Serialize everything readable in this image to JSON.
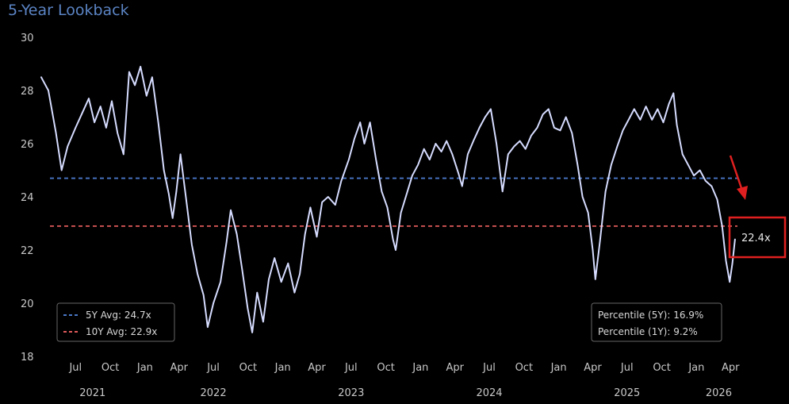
{
  "chart_data": {
    "type": "line",
    "title": "5-Year Lookback",
    "ylim": [
      18,
      30
    ],
    "yticks": [
      18,
      20,
      22,
      24,
      26,
      28,
      30
    ],
    "xlim": [
      "2021-04-01",
      "2026-04-30"
    ],
    "month_ticks": [
      {
        "date": "2021-07-01",
        "label": "Jul"
      },
      {
        "date": "2021-10-01",
        "label": "Oct"
      },
      {
        "date": "2022-01-01",
        "label": "Jan"
      },
      {
        "date": "2022-04-01",
        "label": "Apr"
      },
      {
        "date": "2022-07-01",
        "label": "Jul"
      },
      {
        "date": "2022-10-01",
        "label": "Oct"
      },
      {
        "date": "2023-01-01",
        "label": "Jan"
      },
      {
        "date": "2023-04-01",
        "label": "Apr"
      },
      {
        "date": "2023-07-01",
        "label": "Jul"
      },
      {
        "date": "2023-10-01",
        "label": "Oct"
      },
      {
        "date": "2024-01-01",
        "label": "Jan"
      },
      {
        "date": "2024-04-01",
        "label": "Apr"
      },
      {
        "date": "2024-07-01",
        "label": "Jul"
      },
      {
        "date": "2024-10-01",
        "label": "Oct"
      },
      {
        "date": "2025-01-01",
        "label": "Jan"
      },
      {
        "date": "2025-04-01",
        "label": "Apr"
      },
      {
        "date": "2025-07-01",
        "label": "Jul"
      },
      {
        "date": "2025-10-01",
        "label": "Oct"
      },
      {
        "date": "2026-01-01",
        "label": "Jan"
      },
      {
        "date": "2026-04-01",
        "label": "Apr"
      }
    ],
    "year_labels": [
      {
        "date": "2021-08-15",
        "label": "2021"
      },
      {
        "date": "2022-07-01",
        "label": "2022"
      },
      {
        "date": "2023-07-01",
        "label": "2023"
      },
      {
        "date": "2024-07-01",
        "label": "2024"
      },
      {
        "date": "2025-07-01",
        "label": "2025"
      },
      {
        "date": "2026-03-01",
        "label": "2026"
      }
    ],
    "series": [
      {
        "color": "#d6dcff",
        "points": [
          [
            "2021-04-01",
            28.5
          ],
          [
            "2021-04-20",
            28.0
          ],
          [
            "2021-05-10",
            26.4
          ],
          [
            "2021-05-25",
            25.0
          ],
          [
            "2021-06-10",
            25.9
          ],
          [
            "2021-07-01",
            26.6
          ],
          [
            "2021-07-20",
            27.2
          ],
          [
            "2021-08-05",
            27.7
          ],
          [
            "2021-08-20",
            26.8
          ],
          [
            "2021-09-05",
            27.4
          ],
          [
            "2021-09-20",
            26.6
          ],
          [
            "2021-10-05",
            27.6
          ],
          [
            "2021-10-20",
            26.4
          ],
          [
            "2021-11-05",
            25.6
          ],
          [
            "2021-11-20",
            28.7
          ],
          [
            "2021-12-05",
            28.2
          ],
          [
            "2021-12-20",
            28.9
          ],
          [
            "2022-01-05",
            27.8
          ],
          [
            "2022-01-20",
            28.5
          ],
          [
            "2022-02-05",
            26.8
          ],
          [
            "2022-02-20",
            25.0
          ],
          [
            "2022-03-05",
            24.1
          ],
          [
            "2022-03-15",
            23.2
          ],
          [
            "2022-03-25",
            24.2
          ],
          [
            "2022-04-05",
            25.6
          ],
          [
            "2022-04-20",
            23.9
          ],
          [
            "2022-05-05",
            22.2
          ],
          [
            "2022-05-20",
            21.1
          ],
          [
            "2022-06-05",
            20.3
          ],
          [
            "2022-06-16",
            19.1
          ],
          [
            "2022-07-01",
            20.0
          ],
          [
            "2022-07-20",
            20.8
          ],
          [
            "2022-08-05",
            22.3
          ],
          [
            "2022-08-16",
            23.5
          ],
          [
            "2022-09-01",
            22.6
          ],
          [
            "2022-09-15",
            21.3
          ],
          [
            "2022-09-30",
            19.8
          ],
          [
            "2022-10-12",
            18.9
          ],
          [
            "2022-10-25",
            20.4
          ],
          [
            "2022-11-10",
            19.3
          ],
          [
            "2022-11-25",
            20.9
          ],
          [
            "2022-12-10",
            21.7
          ],
          [
            "2022-12-28",
            20.8
          ],
          [
            "2023-01-15",
            21.5
          ],
          [
            "2023-02-01",
            20.4
          ],
          [
            "2023-02-15",
            21.1
          ],
          [
            "2023-03-01",
            22.6
          ],
          [
            "2023-03-15",
            23.6
          ],
          [
            "2023-04-01",
            22.5
          ],
          [
            "2023-04-15",
            23.8
          ],
          [
            "2023-05-01",
            24.0
          ],
          [
            "2023-05-20",
            23.7
          ],
          [
            "2023-06-05",
            24.6
          ],
          [
            "2023-06-25",
            25.4
          ],
          [
            "2023-07-10",
            26.2
          ],
          [
            "2023-07-25",
            26.8
          ],
          [
            "2023-08-05",
            26.0
          ],
          [
            "2023-08-20",
            26.8
          ],
          [
            "2023-09-05",
            25.4
          ],
          [
            "2023-09-20",
            24.2
          ],
          [
            "2023-10-05",
            23.6
          ],
          [
            "2023-10-20",
            22.4
          ],
          [
            "2023-10-27",
            22.0
          ],
          [
            "2023-11-10",
            23.4
          ],
          [
            "2023-11-25",
            24.1
          ],
          [
            "2023-12-10",
            24.8
          ],
          [
            "2023-12-25",
            25.2
          ],
          [
            "2024-01-10",
            25.8
          ],
          [
            "2024-01-25",
            25.4
          ],
          [
            "2024-02-10",
            26.0
          ],
          [
            "2024-02-25",
            25.7
          ],
          [
            "2024-03-10",
            26.1
          ],
          [
            "2024-03-25",
            25.6
          ],
          [
            "2024-04-10",
            24.9
          ],
          [
            "2024-04-20",
            24.4
          ],
          [
            "2024-05-05",
            25.6
          ],
          [
            "2024-05-20",
            26.1
          ],
          [
            "2024-06-05",
            26.6
          ],
          [
            "2024-06-20",
            27.0
          ],
          [
            "2024-07-05",
            27.3
          ],
          [
            "2024-07-20",
            26.0
          ],
          [
            "2024-08-05",
            24.2
          ],
          [
            "2024-08-20",
            25.6
          ],
          [
            "2024-09-05",
            25.9
          ],
          [
            "2024-09-20",
            26.1
          ],
          [
            "2024-10-05",
            25.8
          ],
          [
            "2024-10-20",
            26.3
          ],
          [
            "2024-11-05",
            26.6
          ],
          [
            "2024-11-20",
            27.1
          ],
          [
            "2024-12-05",
            27.3
          ],
          [
            "2024-12-20",
            26.6
          ],
          [
            "2025-01-05",
            26.5
          ],
          [
            "2025-01-20",
            27.0
          ],
          [
            "2025-02-05",
            26.4
          ],
          [
            "2025-02-20",
            25.2
          ],
          [
            "2025-03-05",
            24.0
          ],
          [
            "2025-03-20",
            23.4
          ],
          [
            "2025-04-01",
            22.0
          ],
          [
            "2025-04-08",
            20.9
          ],
          [
            "2025-04-20",
            22.3
          ],
          [
            "2025-05-05",
            24.2
          ],
          [
            "2025-05-20",
            25.2
          ],
          [
            "2025-06-05",
            25.9
          ],
          [
            "2025-06-20",
            26.5
          ],
          [
            "2025-07-05",
            26.9
          ],
          [
            "2025-07-20",
            27.3
          ],
          [
            "2025-08-05",
            26.9
          ],
          [
            "2025-08-20",
            27.4
          ],
          [
            "2025-09-05",
            26.9
          ],
          [
            "2025-09-20",
            27.3
          ],
          [
            "2025-10-05",
            26.8
          ],
          [
            "2025-10-20",
            27.5
          ],
          [
            "2025-11-01",
            27.9
          ],
          [
            "2025-11-10",
            26.7
          ],
          [
            "2025-11-25",
            25.6
          ],
          [
            "2025-12-10",
            25.2
          ],
          [
            "2025-12-25",
            24.8
          ],
          [
            "2026-01-10",
            25.0
          ],
          [
            "2026-01-25",
            24.6
          ],
          [
            "2026-02-10",
            24.4
          ],
          [
            "2026-02-25",
            23.9
          ],
          [
            "2026-03-10",
            22.9
          ],
          [
            "2026-03-20",
            21.6
          ],
          [
            "2026-03-30",
            20.8
          ],
          [
            "2026-04-06",
            21.5
          ],
          [
            "2026-04-13",
            22.4
          ]
        ]
      }
    ],
    "reference_lines": [
      {
        "label": "5Y Avg: 24.7x",
        "value": 24.7,
        "color": "#4a78c8"
      },
      {
        "label": "10Y Avg: 22.9x",
        "value": 22.9,
        "color": "#e05a5a"
      }
    ],
    "stats_box": [
      "Percentile (5Y): 16.9%",
      "Percentile (1Y): 9.2%"
    ],
    "callout": {
      "text": "22.4x",
      "value": 22.4,
      "color": "#e02020"
    }
  }
}
